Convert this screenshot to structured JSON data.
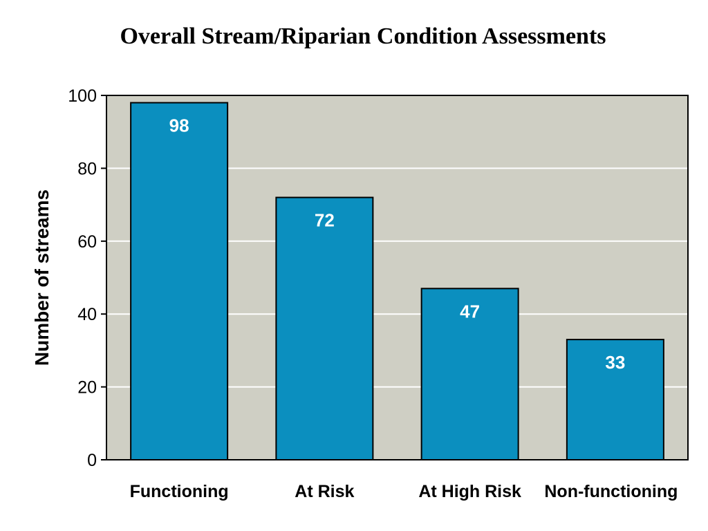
{
  "chart_data": {
    "type": "bar",
    "title": "Overall Stream/Riparian Condition Assessments",
    "xlabel": "",
    "ylabel": "Number of streams",
    "categories": [
      "Functioning",
      "At Risk",
      "At High Risk",
      "Non-functioning"
    ],
    "values": [
      98,
      72,
      47,
      33
    ],
    "data_labels": [
      "98",
      "72",
      "47",
      "33"
    ],
    "ylim": [
      0,
      100
    ],
    "yticks": [
      0,
      20,
      40,
      60,
      80,
      100
    ],
    "ytick_labels": [
      "0",
      "20",
      "40",
      "60",
      "80",
      "100"
    ],
    "grid": true,
    "legend": "none",
    "colors": {
      "bar": "#0b8fbf",
      "plot_background": "#cfcfc4",
      "gridline": "#ffffff",
      "data_label": "#ffffff"
    }
  }
}
